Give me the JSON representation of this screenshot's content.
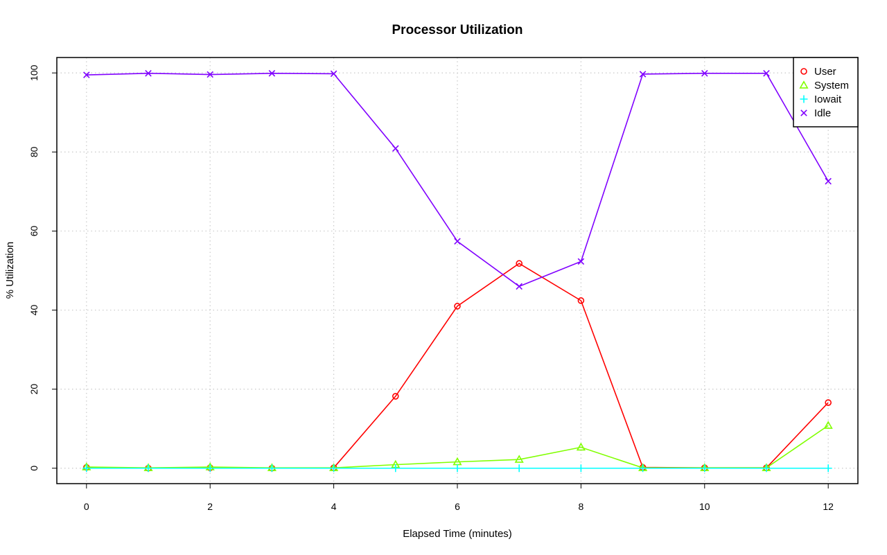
{
  "chart_data": {
    "type": "line",
    "title": "Processor Utilization",
    "xlabel": "Elapsed Time (minutes)",
    "ylabel": "% Utilization",
    "xlim": [
      -0.48,
      12.48
    ],
    "ylim": [
      -3.9,
      103.9
    ],
    "x_ticks": [
      0,
      2,
      4,
      6,
      8,
      10,
      12
    ],
    "y_ticks": [
      0,
      20,
      40,
      60,
      80,
      100
    ],
    "grid": true,
    "legend_position": "top-right",
    "x": [
      0,
      1,
      2,
      3,
      4,
      5,
      6,
      7,
      8,
      9,
      10,
      11,
      12
    ],
    "series": [
      {
        "name": "User",
        "color": "#ff0000",
        "marker": "circle",
        "values": [
          0.2,
          0.0,
          0.1,
          0.0,
          0.1,
          18.2,
          41.0,
          51.8,
          42.4,
          0.2,
          0.1,
          0.1,
          16.6
        ]
      },
      {
        "name": "System",
        "color": "#80ff00",
        "marker": "triangle",
        "values": [
          0.3,
          0.1,
          0.3,
          0.1,
          0.1,
          0.9,
          1.6,
          2.2,
          5.3,
          0.1,
          0.1,
          0.1,
          10.8
        ]
      },
      {
        "name": "Iowait",
        "color": "#00ffff",
        "marker": "plus",
        "values": [
          0,
          0,
          0,
          0,
          0,
          0,
          0,
          0,
          0,
          0,
          0,
          0,
          0
        ]
      },
      {
        "name": "Idle",
        "color": "#8000ff",
        "marker": "cross",
        "values": [
          99.5,
          99.9,
          99.6,
          99.9,
          99.8,
          80.9,
          57.4,
          46.0,
          52.3,
          99.7,
          99.9,
          99.9,
          72.6
        ]
      }
    ]
  }
}
